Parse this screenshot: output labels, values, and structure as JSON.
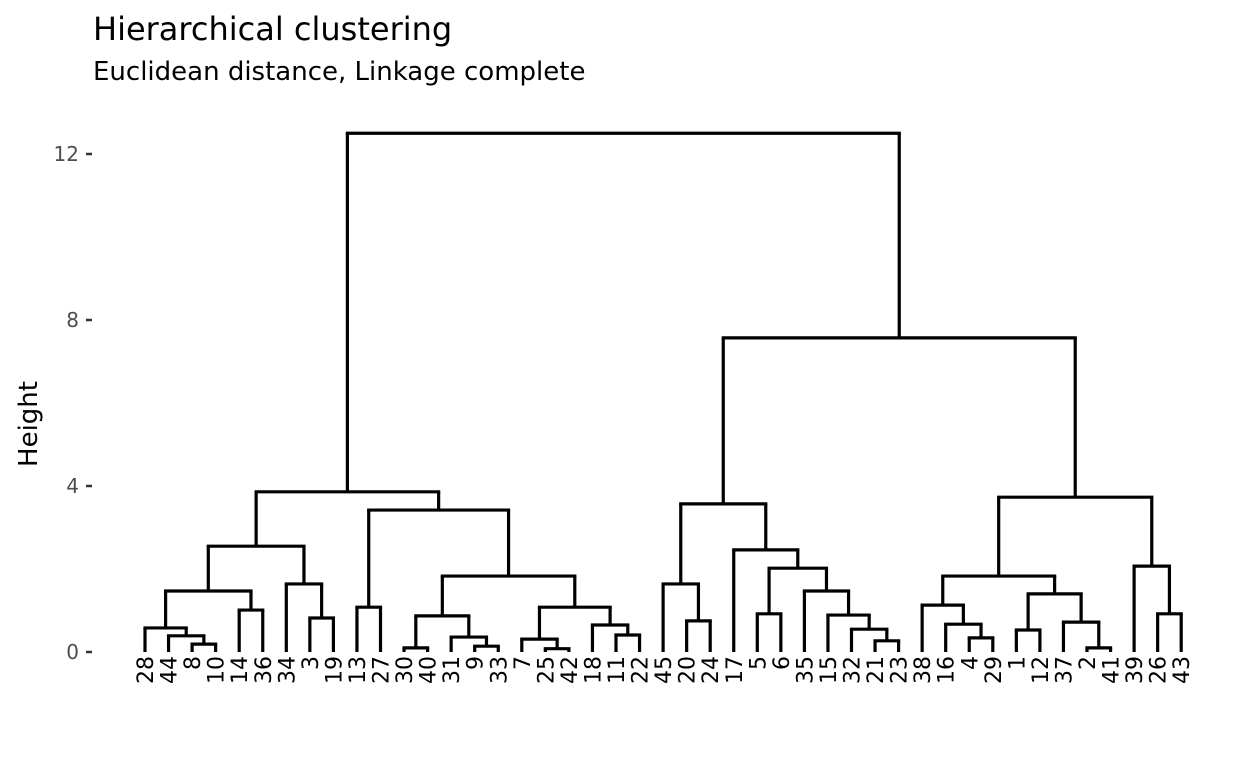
{
  "chart_data": {
    "type": "dendrogram",
    "title": "Hierarchical clustering",
    "subtitle": "Euclidean distance, Linkage complete",
    "ylabel": "Height",
    "xlabel": "",
    "ylim": [
      0,
      12.5
    ],
    "yticks": [
      0,
      4,
      8,
      12
    ],
    "grid": false,
    "tree": {
      "h": 12.5,
      "c": [
        {
          "h": 3.86,
          "c": [
            {
              "h": 2.55,
              "c": [
                {
                  "h": 1.47,
                  "c": [
                    {
                      "h": 0.58,
                      "c": [
                        "28",
                        {
                          "h": 0.39,
                          "c": [
                            "44",
                            {
                              "h": 0.19,
                              "c": [
                                "8",
                                "10"
                              ]
                            }
                          ]
                        }
                      ]
                    },
                    {
                      "h": 1.01,
                      "c": [
                        "14",
                        "36"
                      ]
                    }
                  ]
                },
                {
                  "h": 1.64,
                  "c": [
                    "34",
                    {
                      "h": 0.82,
                      "c": [
                        "3",
                        "19"
                      ]
                    }
                  ]
                }
              ]
            },
            {
              "h": 3.42,
              "c": [
                {
                  "h": 1.08,
                  "c": [
                    "13",
                    "27"
                  ]
                },
                {
                  "h": 1.83,
                  "c": [
                    {
                      "h": 0.87,
                      "c": [
                        {
                          "h": 0.1,
                          "c": [
                            "30",
                            "40"
                          ]
                        },
                        {
                          "h": 0.36,
                          "c": [
                            "31",
                            {
                              "h": 0.14,
                              "c": [
                                "9",
                                "33"
                              ]
                            }
                          ]
                        }
                      ]
                    },
                    {
                      "h": 1.08,
                      "c": [
                        {
                          "h": 0.31,
                          "c": [
                            "7",
                            {
                              "h": 0.08,
                              "c": [
                                "25",
                                "42"
                              ]
                            }
                          ]
                        },
                        {
                          "h": 0.65,
                          "c": [
                            "18",
                            {
                              "h": 0.41,
                              "c": [
                                "11",
                                "22"
                              ]
                            }
                          ]
                        }
                      ]
                    }
                  ]
                }
              ]
            }
          ]
        },
        {
          "h": 7.57,
          "c": [
            {
              "h": 3.57,
              "c": [
                {
                  "h": 1.64,
                  "c": [
                    "45",
                    {
                      "h": 0.75,
                      "c": [
                        "20",
                        "24"
                      ]
                    }
                  ]
                },
                {
                  "h": 2.46,
                  "c": [
                    "17",
                    {
                      "h": 2.02,
                      "c": [
                        {
                          "h": 0.92,
                          "c": [
                            "5",
                            "6"
                          ]
                        },
                        {
                          "h": 1.47,
                          "c": [
                            "35",
                            {
                              "h": 0.89,
                              "c": [
                                "15",
                                {
                                  "h": 0.55,
                                  "c": [
                                    "32",
                                    {
                                      "h": 0.27,
                                      "c": [
                                        "21",
                                        "23"
                                      ]
                                    }
                                  ]
                                }
                              ]
                            }
                          ]
                        }
                      ]
                    }
                  ]
                }
              ]
            },
            {
              "h": 3.73,
              "c": [
                {
                  "h": 1.83,
                  "c": [
                    {
                      "h": 1.13,
                      "c": [
                        "38",
                        {
                          "h": 0.67,
                          "c": [
                            "16",
                            {
                              "h": 0.34,
                              "c": [
                                "4",
                                "29"
                              ]
                            }
                          ]
                        }
                      ]
                    },
                    {
                      "h": 1.4,
                      "c": [
                        {
                          "h": 0.53,
                          "c": [
                            "1",
                            "12"
                          ]
                        },
                        {
                          "h": 0.72,
                          "c": [
                            "37",
                            {
                              "h": 0.1,
                              "c": [
                                "2",
                                "41"
                              ]
                            }
                          ]
                        }
                      ]
                    }
                  ]
                },
                {
                  "h": 2.07,
                  "c": [
                    "39",
                    {
                      "h": 0.92,
                      "c": [
                        "26",
                        "43"
                      ]
                    }
                  ]
                }
              ]
            }
          ]
        }
      ]
    }
  }
}
